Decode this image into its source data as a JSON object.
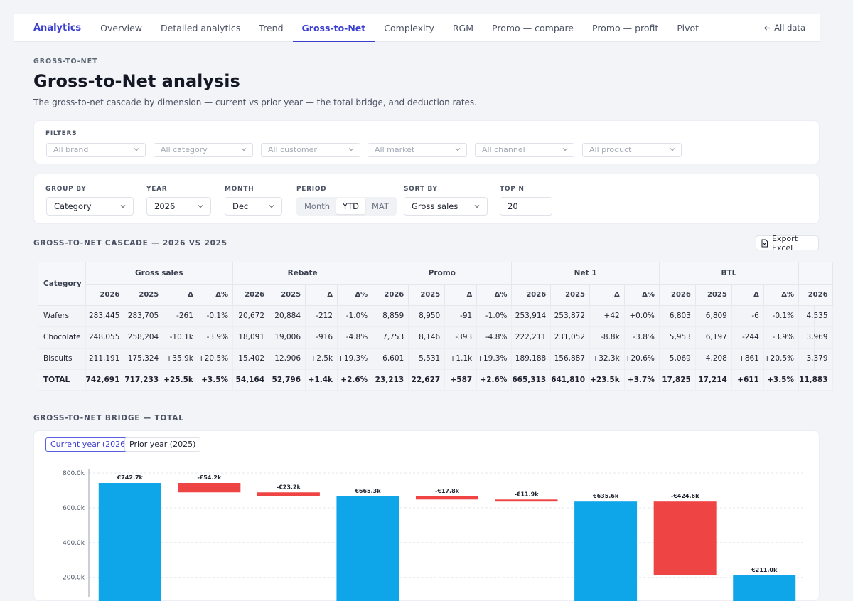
{
  "nav": {
    "brand": "Analytics",
    "tabs": [
      "Overview",
      "Detailed analytics",
      "Trend",
      "Gross-to-Net",
      "Complexity",
      "RGM",
      "Promo — compare",
      "Promo — profit",
      "Pivot"
    ],
    "active_tab": "Gross-to-Net",
    "all_data": "All data"
  },
  "page": {
    "eyebrow": "GROSS-TO-NET",
    "title": "Gross-to-Net analysis",
    "subtitle": "The gross-to-net cascade by dimension — current vs prior year — the total bridge, and deduction rates."
  },
  "filters": {
    "label": "FILTERS",
    "items": [
      "All brand",
      "All category",
      "All customer",
      "All market",
      "All channel",
      "All product"
    ]
  },
  "controls": {
    "group_by": {
      "label": "GROUP BY",
      "value": "Category"
    },
    "year": {
      "label": "YEAR",
      "value": "2026"
    },
    "month": {
      "label": "MONTH",
      "value": "Dec"
    },
    "period": {
      "label": "PERIOD",
      "options": [
        "Month",
        "YTD",
        "MAT"
      ],
      "selected": "YTD"
    },
    "sort_by": {
      "label": "SORT BY",
      "value": "Gross sales"
    },
    "top_n": {
      "label": "TOP N",
      "value": "20"
    }
  },
  "cascade": {
    "heading": "GROSS-TO-NET CASCADE — 2026 VS 2025",
    "export_label": "Export Excel",
    "dim_header": "Category",
    "groups": [
      "Gross sales",
      "Rebate",
      "Promo",
      "Net 1",
      "BTL"
    ],
    "sub_headers": [
      "2026",
      "2025",
      "Δ",
      "Δ%"
    ],
    "extra_sub_header": "2026",
    "rows": [
      {
        "name": "Wafers",
        "cells": [
          [
            "283,445",
            "283,705",
            "-261",
            "-0.1%"
          ],
          [
            "20,672",
            "20,884",
            "-212",
            "-1.0%"
          ],
          [
            "8,859",
            "8,950",
            "-91",
            "-1.0%"
          ],
          [
            "253,914",
            "253,872",
            "+42",
            "+0.0%"
          ],
          [
            "6,803",
            "6,809",
            "-6",
            "-0.1%"
          ]
        ],
        "extra": "4,535"
      },
      {
        "name": "Chocolate",
        "cells": [
          [
            "248,055",
            "258,204",
            "-10.1k",
            "-3.9%"
          ],
          [
            "18,091",
            "19,006",
            "-916",
            "-4.8%"
          ],
          [
            "7,753",
            "8,146",
            "-393",
            "-4.8%"
          ],
          [
            "222,211",
            "231,052",
            "-8.8k",
            "-3.8%"
          ],
          [
            "5,953",
            "6,197",
            "-244",
            "-3.9%"
          ]
        ],
        "extra": "3,969"
      },
      {
        "name": "Biscuits",
        "cells": [
          [
            "211,191",
            "175,324",
            "+35.9k",
            "+20.5%"
          ],
          [
            "15,402",
            "12,906",
            "+2.5k",
            "+19.3%"
          ],
          [
            "6,601",
            "5,531",
            "+1.1k",
            "+19.3%"
          ],
          [
            "189,188",
            "156,887",
            "+32.3k",
            "+20.6%"
          ],
          [
            "5,069",
            "4,208",
            "+861",
            "+20.5%"
          ]
        ],
        "extra": "3,379"
      },
      {
        "name": "TOTAL",
        "cells": [
          [
            "742,691",
            "717,233",
            "+25.5k",
            "+3.5%"
          ],
          [
            "54,164",
            "52,796",
            "+1.4k",
            "+2.6%"
          ],
          [
            "23,213",
            "22,627",
            "+587",
            "+2.6%"
          ],
          [
            "665,313",
            "641,810",
            "+23.5k",
            "+3.7%"
          ],
          [
            "17,825",
            "17,214",
            "+611",
            "+3.5%"
          ]
        ],
        "extra": "11,883"
      }
    ]
  },
  "bridge": {
    "heading": "GROSS-TO-NET BRIDGE — TOTAL",
    "toggles": [
      "Current year (2026)",
      "Prior year (2025)"
    ],
    "active_toggle": "Current year (2026)"
  },
  "chart_data": {
    "type": "bar",
    "subtype": "waterfall",
    "ylim": [
      0,
      800
    ],
    "yticks": [
      "800.0k",
      "600.0k",
      "400.0k",
      "200.0k"
    ],
    "ytick_values": [
      800,
      600,
      400,
      200
    ],
    "unit": "thousands €",
    "steps": [
      {
        "kind": "total",
        "value": 742.7,
        "label": "€742.7k"
      },
      {
        "kind": "delta",
        "value": -54.2,
        "label": "-€54.2k"
      },
      {
        "kind": "delta",
        "value": -23.2,
        "label": "-€23.2k"
      },
      {
        "kind": "total",
        "value": 665.3,
        "label": "€665.3k"
      },
      {
        "kind": "delta",
        "value": -17.8,
        "label": "-€17.8k"
      },
      {
        "kind": "delta",
        "value": -11.9,
        "label": "-€11.9k"
      },
      {
        "kind": "total",
        "value": 635.6,
        "label": "€635.6k"
      },
      {
        "kind": "delta",
        "value": -424.6,
        "label": "-€424.6k"
      },
      {
        "kind": "total",
        "value": 211.0,
        "label": "€211.0k"
      }
    ],
    "colors": {
      "total": "#0ea5e9",
      "delta": "#ef4444"
    }
  }
}
